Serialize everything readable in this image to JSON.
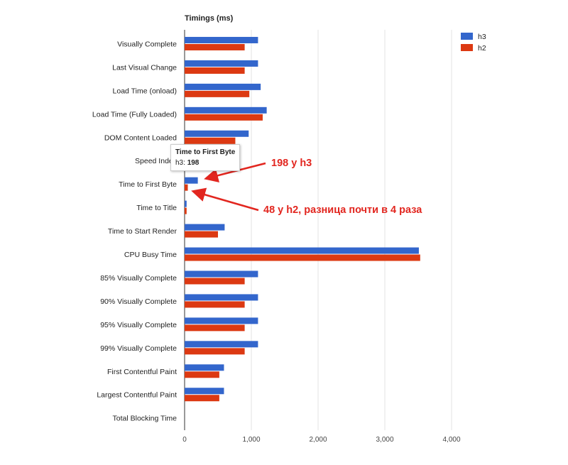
{
  "chart_data": {
    "type": "bar",
    "orientation": "horizontal",
    "title": "Timings (ms)",
    "categories": [
      "Visually Complete",
      "Last Visual Change",
      "Load Time (onload)",
      "Load Time (Fully Loaded)",
      "DOM Content Loaded",
      "Speed Index",
      "Time to First Byte",
      "Time to Title",
      "Time to Start Render",
      "CPU Busy Time",
      "85% Visually Complete",
      "90% Visually Complete",
      "95% Visually Complete",
      "99% Visually Complete",
      "First Contentful Paint",
      "Largest Contentful Paint",
      "Total Blocking Time"
    ],
    "series": [
      {
        "name": "h3",
        "color": "#3366cc",
        "values": [
          1100,
          1100,
          1140,
          1230,
          960,
          0,
          198,
          30,
          600,
          3510,
          1100,
          1100,
          1100,
          1100,
          590,
          590,
          0
        ]
      },
      {
        "name": "h2",
        "color": "#dc3912",
        "values": [
          900,
          900,
          970,
          1170,
          760,
          0,
          48,
          30,
          500,
          3530,
          900,
          900,
          900,
          900,
          520,
          520,
          0
        ]
      }
    ],
    "xlim": [
      0,
      4000
    ],
    "x_ticks": [
      0,
      1000,
      2000,
      3000,
      4000
    ],
    "x_tick_labels": [
      "0",
      "1,000",
      "2,000",
      "3,000",
      "4,000"
    ],
    "grid": true,
    "legend_position": "top-right"
  },
  "tooltip": {
    "title": "Time to First Byte",
    "series_label": "h3:",
    "value": "198"
  },
  "annotations": {
    "h3_note": "198 у h3",
    "h2_note": "48 у h2, разница почти в 4 раза",
    "color": "#e2261f"
  }
}
